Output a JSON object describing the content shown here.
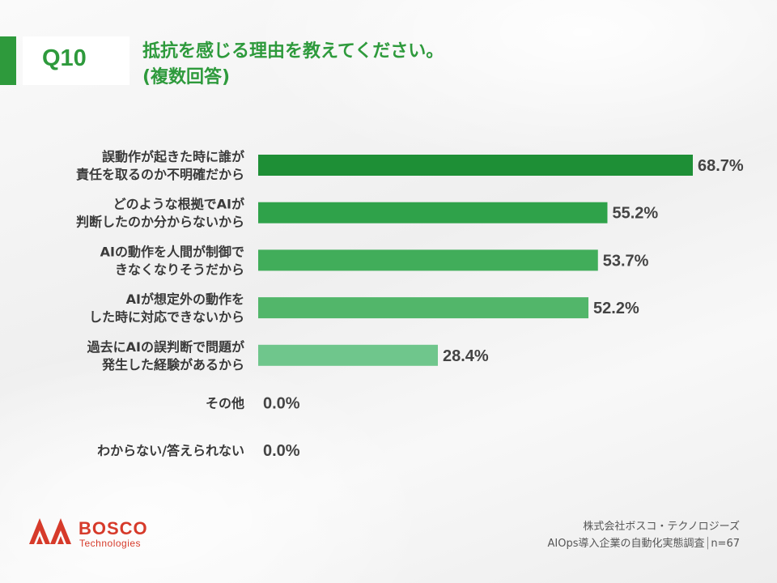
{
  "header": {
    "question_number": "Q10",
    "title_line1": "抵抗を感じる理由を教えてください。",
    "title_line2": "(複数回答)"
  },
  "chart_data": {
    "type": "bar",
    "orientation": "horizontal",
    "categories": [
      [
        "誤動作が起きた時に誰が",
        "責任を取るのか不明確だから"
      ],
      [
        "どのような根拠でAIが",
        "判断したのか分からないから"
      ],
      [
        "AIの動作を人間が制御で",
        "きなくなりそうだから"
      ],
      [
        "AIが想定外の動作を",
        "した時に対応できないから"
      ],
      [
        "過去にAIの誤判断で問題が",
        "発生した経験があるから"
      ],
      [
        "その他"
      ],
      [
        "わからない/答えられない"
      ]
    ],
    "values": [
      68.7,
      55.2,
      53.7,
      52.2,
      28.4,
      0.0,
      0.0
    ],
    "value_labels": [
      "68.7%",
      "55.2%",
      "53.7%",
      "52.2%",
      "28.4%",
      "0.0%",
      "0.0%"
    ],
    "colors": [
      "#1e8f36",
      "#2fa24a",
      "#41ad5a",
      "#52b66a",
      "#6fc68c",
      "#6fc68c",
      "#6fc68c"
    ],
    "xlim": [
      0,
      100
    ],
    "grid": false,
    "legend": "none"
  },
  "logo": {
    "name": "BOSCO",
    "sub": "Technologies",
    "color": "#d63a2a"
  },
  "footer": {
    "company": "株式会社ボスコ・テクノロジーズ",
    "survey": "AIOps導入企業の自動化実態調査",
    "sample": "n=67"
  }
}
